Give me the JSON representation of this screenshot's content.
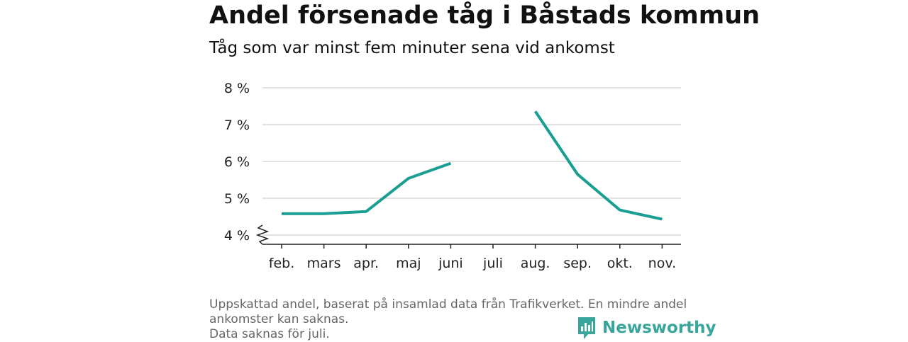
{
  "header": {
    "title": "Andel försenade tåg i Båstads kommun",
    "subtitle": "Tåg som var minst fem minuter sena vid ankomst"
  },
  "chart_data": {
    "type": "line",
    "categories": [
      "feb.",
      "mars",
      "apr.",
      "maj",
      "juni",
      "juli",
      "aug.",
      "sep.",
      "okt.",
      "nov."
    ],
    "series": [
      {
        "values": [
          4.58,
          4.58,
          4.64,
          5.54,
          5.95,
          null,
          7.36,
          5.65,
          4.68,
          4.43
        ]
      }
    ],
    "yticks": [
      4,
      5,
      6,
      7,
      8
    ],
    "ytick_labels": [
      "4 %",
      "5 %",
      "6 %",
      "7 %",
      "8 %"
    ],
    "ylim": [
      4,
      8
    ],
    "y_axis_break": true,
    "grid": true,
    "line_color": "#1a9e93"
  },
  "footer": {
    "line1": "Uppskattad andel, baserat på insamlad data från Trafikverket. En mindre andel",
    "line2": "ankomster kan saknas.",
    "line3": "Data saknas för juli."
  },
  "brand": {
    "name": "Newsworthy",
    "icon": "newsworthy-logo-icon",
    "color": "#3aa59a"
  }
}
